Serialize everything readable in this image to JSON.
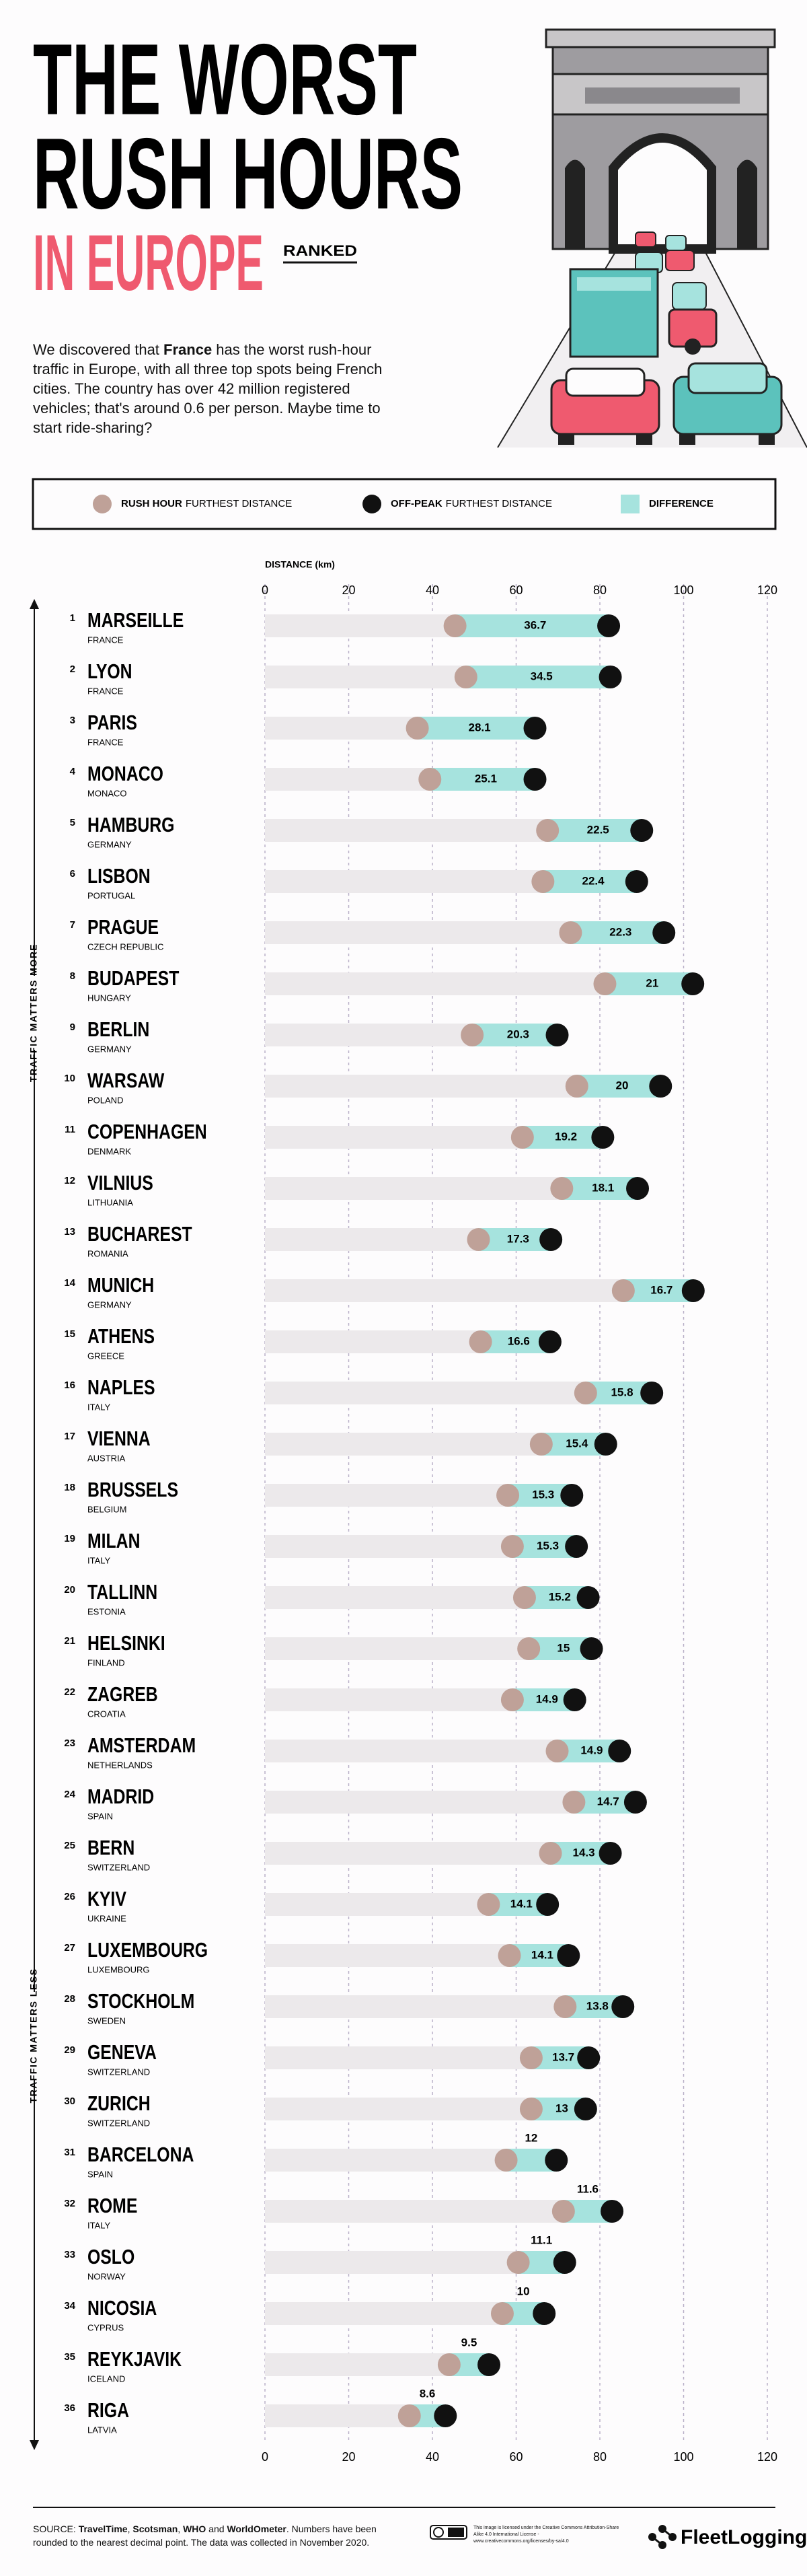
{
  "header": {
    "title_lines": [
      "THE WORST",
      "RUSH HOURS",
      "IN EUROPE"
    ],
    "badge": "RANKED",
    "description": [
      "We discovered that ",
      "France",
      " has the worst rush-hour traffic in Europe, with all three top spots being French cities. The country has over 42 million registered vehicles; that's around 0.6 per person. Maybe time to start ride-sharing?"
    ]
  },
  "chart_data": {
    "type": "dumbbell",
    "axis_label": "DISTANCE (km)",
    "side_labels": [
      "TRAFFIC MATTERS MORE",
      "TRAFFIC MATTERS LESS"
    ],
    "ranks": [
      1,
      2,
      3,
      4,
      5,
      6,
      7,
      8,
      9,
      10,
      11,
      12,
      13,
      14,
      15,
      16,
      17,
      18,
      19,
      20,
      21,
      22,
      23,
      24,
      25,
      26,
      27,
      28,
      29,
      30,
      31,
      32,
      33,
      34,
      35,
      36
    ],
    "categories": [
      "MARSEILLE",
      "LYON",
      "PARIS",
      "MONACO",
      "HAMBURG",
      "LISBON",
      "PRAGUE",
      "BUDAPEST",
      "BERLIN",
      "WARSAW",
      "COPENHAGEN",
      "VILNIUS",
      "BUCHAREST",
      "MUNICH",
      "ATHENS",
      "NAPLES",
      "VIENNA",
      "BRUSSELS",
      "MILAN",
      "TALLINN",
      "HELSINKI",
      "ZAGREB",
      "AMSTERDAM",
      "MADRID",
      "BERN",
      "KYIV",
      "LUXEMBOURG",
      "STOCKHOLM",
      "GENEVA",
      "ZURICH",
      "BARCELONA",
      "ROME",
      "OSLO",
      "NICOSIA",
      "REYKJAVIK",
      "RIGA"
    ],
    "countries": [
      "FRANCE",
      "FRANCE",
      "FRANCE",
      "MONACO",
      "GERMANY",
      "PORTUGAL",
      "CZECH REPUBLIC",
      "HUNGARY",
      "GERMANY",
      "POLAND",
      "DENMARK",
      "LITHUANIA",
      "ROMANIA",
      "GERMANY",
      "GREECE",
      "ITALY",
      "AUSTRIA",
      "BELGIUM",
      "ITALY",
      "ESTONIA",
      "FINLAND",
      "CROATIA",
      "NETHERLANDS",
      "SPAIN",
      "SWITZERLAND",
      "UKRAINE",
      "LUXEMBOURG",
      "SWEDEN",
      "SWITZERLAND",
      "SWITZERLAND",
      "SPAIN",
      "ITALY",
      "NORWAY",
      "CYPRUS",
      "ICELAND",
      "LATVIA"
    ],
    "series": [
      {
        "name": "RUSH HOUR",
        "name_suffix": "FURTHEST DISTANCE",
        "color": "#bfa198",
        "values": [
          45.4,
          48,
          36.4,
          39.4,
          67.5,
          66.4,
          73,
          81.2,
          49.5,
          74.5,
          61.5,
          70.9,
          51,
          85.6,
          51.5,
          76.6,
          66,
          58,
          59.1,
          62,
          63,
          59.1,
          69.8,
          73.8,
          68.2,
          53.4,
          58.4,
          71.7,
          63.6,
          63.6,
          57.6,
          71.3,
          60.5,
          56.7,
          44,
          34.5
        ]
      },
      {
        "name": "OFF-PEAK",
        "name_suffix": "FURTHEST DISTANCE",
        "color": "#111111",
        "values": [
          82.1,
          82.5,
          64.5,
          64.5,
          90,
          88.8,
          95.3,
          102.2,
          69.8,
          94.5,
          80.7,
          89,
          68.3,
          102.3,
          68.1,
          92.4,
          81.4,
          73.3,
          74.4,
          77.2,
          78,
          74,
          84.7,
          88.5,
          82.5,
          67.5,
          72.5,
          85.5,
          77.3,
          76.6,
          69.6,
          82.9,
          71.6,
          66.7,
          53.5,
          43.1
        ]
      },
      {
        "name": "DIFFERENCE",
        "color": "#a6e3de",
        "values": [
          36.7,
          34.5,
          28.1,
          25.1,
          22.5,
          22.4,
          22.3,
          21,
          20.3,
          20,
          19.2,
          18.1,
          17.3,
          16.7,
          16.6,
          15.8,
          15.4,
          15.3,
          15.3,
          15.2,
          15,
          14.9,
          14.9,
          14.7,
          14.3,
          14.1,
          14.1,
          13.8,
          13.7,
          13,
          12,
          11.6,
          11.1,
          10,
          9.5,
          8.6
        ]
      }
    ],
    "track_color": "#ece9eb",
    "xlim": [
      0,
      120
    ],
    "xticks": [
      0,
      20,
      40,
      60,
      80,
      100,
      120
    ],
    "grid": true
  },
  "footer": {
    "source": [
      "SOURCE: ",
      "TravelTime",
      ", ",
      "Scotsman",
      ", ",
      "WHO",
      " and ",
      "WorldOmeter",
      ". Numbers have been rounded to the nearest decimal point. The data was collected in November 2020."
    ],
    "license": "This image is licensed under the Creative Commons Attribution-Share Alike 4.0 International License - www.creativecommons.org/licenses/by-sa/4.0",
    "logo": "FleetLogging"
  }
}
